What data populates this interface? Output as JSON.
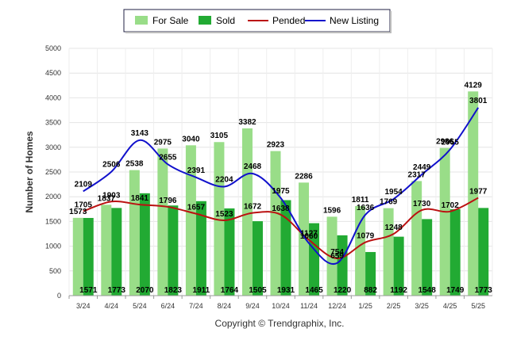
{
  "chart_data": {
    "type": "bar",
    "ylabel": "Number of Homes",
    "ylim": [
      0,
      5000
    ],
    "yticks": [
      0,
      500,
      1000,
      1500,
      2000,
      2500,
      3000,
      3500,
      4000,
      4500,
      5000
    ],
    "categories": [
      "3/24",
      "4/24",
      "5/24",
      "6/24",
      "7/24",
      "8/24",
      "9/24",
      "10/24",
      "11/24",
      "12/24",
      "1/25",
      "2/25",
      "3/25",
      "4/25",
      "5/25"
    ],
    "series": [
      {
        "name": "For Sale",
        "type": "bar",
        "color": "#99dd88",
        "values": [
          1573,
          1837,
          2538,
          2975,
          3040,
          3105,
          3382,
          2923,
          2286,
          1596,
          1811,
          1769,
          2317,
          2986,
          4129
        ]
      },
      {
        "name": "Sold",
        "type": "bar",
        "color": "#22aa33",
        "values": [
          1571,
          1773,
          2070,
          1823,
          1911,
          1764,
          1505,
          1931,
          1465,
          1220,
          882,
          1192,
          1548,
          1749,
          1773
        ]
      },
      {
        "name": "Pended",
        "type": "line",
        "color": "#bb1111",
        "values": [
          1705,
          1903,
          1841,
          1796,
          1657,
          1523,
          1672,
          1638,
          1127,
          754,
          1079,
          1248,
          1730,
          1702,
          1977
        ]
      },
      {
        "name": "New Listing",
        "type": "line",
        "color": "#1111cc",
        "values": [
          2109,
          2506,
          3143,
          2655,
          2391,
          2204,
          2468,
          1975,
          1060,
          659,
          1636,
          1954,
          2449,
          2955,
          3801
        ]
      }
    ],
    "legend_position": "top-center",
    "grid": true,
    "copyright": "Copyright © Trendgraphix, Inc."
  }
}
